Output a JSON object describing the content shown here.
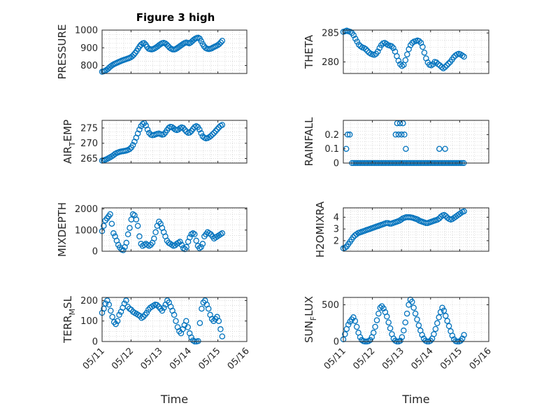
{
  "figure_title": "Figure 3 high",
  "colors": {
    "marker": "#0072BD",
    "axis": "#262626",
    "grid": "#c8c8c8"
  },
  "chart_data": [
    {
      "type": "scatter",
      "id": "pressure",
      "title": "Figure 3 high",
      "ylabel": "PRESSURE",
      "ylim": [
        755,
        1000
      ],
      "yticks": [
        800,
        900,
        1000
      ],
      "xlim": [
        0,
        5
      ],
      "xticks": [],
      "y": [
        765,
        767,
        770,
        775,
        782,
        790,
        797,
        803,
        808,
        812,
        816,
        820,
        823,
        827,
        830,
        833,
        836,
        839,
        842,
        846,
        852,
        860,
        870,
        882,
        895,
        908,
        918,
        925,
        927,
        918,
        905,
        895,
        892,
        891,
        893,
        897,
        902,
        908,
        915,
        921,
        926,
        928,
        925,
        919,
        910,
        901,
        895,
        891,
        890,
        893,
        898,
        904,
        910,
        916,
        922,
        927,
        930,
        928,
        925,
        930,
        937,
        945,
        951,
        955,
        957,
        952,
        938,
        921,
        908,
        899,
        895,
        893,
        894,
        897,
        902,
        906,
        910,
        915,
        921,
        930,
        940
      ]
    },
    {
      "type": "scatter",
      "id": "theta",
      "ylabel": "THETA",
      "ylim": [
        278,
        285.5
      ],
      "yticks": [
        280,
        285
      ],
      "xlim": [
        0,
        5
      ],
      "xticks": [],
      "y": [
        285.2,
        285.3,
        285.4,
        285.3,
        285.2,
        285.0,
        284.6,
        284.0,
        283.5,
        283.0,
        282.7,
        282.5,
        282.4,
        282.2,
        281.9,
        281.6,
        281.4,
        281.3,
        281.2,
        281.4,
        281.8,
        282.4,
        282.9,
        283.2,
        283.3,
        283.1,
        282.9,
        282.8,
        282.7,
        282.4,
        281.8,
        281.0,
        280.2,
        279.6,
        279.3,
        279.5,
        280.3,
        281.3,
        282.2,
        282.9,
        283.3,
        283.5,
        283.6,
        283.7,
        283.6,
        283.3,
        282.6,
        281.6,
        280.6,
        279.9,
        279.5,
        279.4,
        279.6,
        280.0,
        279.9,
        279.6,
        279.4,
        279.1,
        278.9,
        279.1,
        279.4,
        279.7,
        280.0,
        280.4,
        280.8,
        281.1,
        281.3,
        281.4,
        281.3,
        281.1,
        280.9
      ]
    },
    {
      "type": "scatter",
      "id": "air_temp",
      "ylabel": "AIR_TEMP",
      "ylim": [
        263.5,
        277.5
      ],
      "yticks": [
        265,
        270,
        275
      ],
      "xlim": [
        0,
        5
      ],
      "xticks": [],
      "y": [
        264.3,
        264.4,
        264.6,
        264.8,
        265.1,
        265.4,
        265.7,
        266.1,
        266.5,
        266.8,
        267.0,
        267.2,
        267.3,
        267.4,
        267.5,
        267.6,
        267.8,
        268.1,
        268.6,
        269.4,
        270.5,
        271.8,
        273.2,
        274.5,
        275.6,
        276.3,
        276.6,
        275.8,
        274.5,
        273.4,
        272.8,
        272.6,
        272.7,
        272.9,
        273.1,
        273.2,
        273.0,
        272.8,
        272.9,
        273.5,
        274.3,
        275.0,
        275.4,
        275.3,
        274.9,
        274.5,
        274.3,
        274.5,
        274.9,
        275.2,
        275.0,
        274.4,
        273.8,
        273.4,
        273.5,
        274.0,
        274.7,
        275.3,
        275.6,
        275.3,
        274.5,
        273.3,
        272.3,
        271.8,
        271.6,
        271.7,
        272.0,
        272.4,
        272.9,
        273.4,
        274.0,
        274.6,
        275.2,
        275.7,
        276.0
      ]
    },
    {
      "type": "scatter",
      "id": "rainfall",
      "ylabel": "RAINFALL",
      "ylim": [
        0,
        0.3
      ],
      "yticks": [
        0,
        0.1,
        0.2
      ],
      "xlim": [
        0,
        5
      ],
      "xticks": [],
      "y_nonzero": [
        [
          0.1,
          0.1
        ],
        [
          0.15,
          0.2
        ],
        [
          0.22,
          0.2
        ],
        [
          1.8,
          0.2
        ],
        [
          1.85,
          0.28
        ],
        [
          1.9,
          0.2
        ],
        [
          1.95,
          0.28
        ],
        [
          2.0,
          0.2
        ],
        [
          2.05,
          0.28
        ],
        [
          2.1,
          0.2
        ],
        [
          2.15,
          0.1
        ],
        [
          3.3,
          0.1
        ],
        [
          3.5,
          0.1
        ]
      ],
      "zero_range": [
        0.3,
        4.15
      ]
    },
    {
      "type": "scatter",
      "id": "mixdepth",
      "ylabel": "MIXDEPTH",
      "ylim": [
        0,
        2050
      ],
      "yticks": [
        0,
        1000,
        2000
      ],
      "xlim": [
        0,
        5
      ],
      "xticks": [],
      "y": [
        950,
        1200,
        1450,
        1550,
        1650,
        1750,
        1300,
        850,
        700,
        500,
        300,
        180,
        80,
        50,
        200,
        400,
        800,
        1100,
        1500,
        1750,
        1700,
        1500,
        1200,
        700,
        350,
        250,
        300,
        350,
        300,
        250,
        300,
        400,
        600,
        900,
        1200,
        1400,
        1300,
        1100,
        900,
        700,
        500,
        400,
        350,
        300,
        250,
        280,
        350,
        400,
        450,
        300,
        150,
        100,
        200,
        450,
        650,
        800,
        850,
        800,
        500,
        250,
        150,
        200,
        350,
        700,
        800,
        900,
        850,
        800,
        700,
        600,
        650,
        700,
        750,
        800,
        850
      ]
    },
    {
      "type": "scatter",
      "id": "h2omixra",
      "ylabel": "H2OMIXRA",
      "ylim": [
        1.1,
        4.8
      ],
      "yticks": [
        2,
        3,
        4
      ],
      "xlim": [
        0,
        5
      ],
      "xticks": [],
      "y": [
        1.35,
        1.4,
        1.5,
        1.7,
        1.9,
        2.1,
        2.3,
        2.45,
        2.55,
        2.65,
        2.7,
        2.75,
        2.8,
        2.85,
        2.9,
        2.95,
        3.0,
        3.05,
        3.1,
        3.15,
        3.2,
        3.25,
        3.3,
        3.35,
        3.4,
        3.45,
        3.5,
        3.5,
        3.45,
        3.45,
        3.5,
        3.55,
        3.6,
        3.65,
        3.7,
        3.8,
        3.9,
        3.95,
        4.0,
        4.0,
        4.0,
        3.98,
        3.95,
        3.9,
        3.85,
        3.8,
        3.7,
        3.65,
        3.6,
        3.55,
        3.5,
        3.5,
        3.55,
        3.6,
        3.65,
        3.7,
        3.75,
        3.8,
        3.9,
        4.05,
        4.15,
        4.2,
        4.1,
        3.95,
        3.85,
        3.8,
        3.85,
        3.95,
        4.05,
        4.15,
        4.25,
        4.35,
        4.45,
        4.5
      ]
    },
    {
      "type": "scatter",
      "id": "terr_msl",
      "ylabel": "TERR_MSL",
      "ylim": [
        0,
        215
      ],
      "yticks": [
        0,
        100,
        200
      ],
      "xlim": [
        0,
        5
      ],
      "xticks": [
        "05/11",
        "05/12",
        "05/13",
        "05/14",
        "05/15",
        "05/16"
      ],
      "xlabel": "Time",
      "y": [
        140,
        160,
        185,
        200,
        180,
        150,
        120,
        95,
        85,
        100,
        130,
        145,
        165,
        185,
        200,
        170,
        160,
        155,
        145,
        140,
        135,
        130,
        125,
        115,
        120,
        130,
        140,
        155,
        165,
        170,
        175,
        180,
        178,
        170,
        160,
        150,
        165,
        180,
        200,
        190,
        170,
        150,
        130,
        100,
        70,
        50,
        40,
        60,
        80,
        100,
        70,
        40,
        20,
        5,
        0,
        0,
        2,
        90,
        160,
        190,
        200,
        180,
        160,
        130,
        110,
        100,
        110,
        120,
        100,
        60,
        25
      ]
    },
    {
      "type": "scatter",
      "id": "sun_flux",
      "ylabel": "SUN_FLUX",
      "ylim": [
        0,
        600
      ],
      "yticks": [
        0,
        500
      ],
      "xlim": [
        0,
        5
      ],
      "xticks": [
        "05/11",
        "05/12",
        "05/13",
        "05/14",
        "05/15",
        "05/16"
      ],
      "xlabel": "Time",
      "y": [
        30,
        100,
        170,
        230,
        270,
        300,
        330,
        280,
        200,
        120,
        60,
        20,
        5,
        0,
        0,
        5,
        20,
        60,
        120,
        200,
        290,
        380,
        460,
        480,
        450,
        400,
        340,
        260,
        180,
        100,
        40,
        10,
        0,
        0,
        10,
        60,
        150,
        260,
        380,
        500,
        570,
        540,
        460,
        380,
        300,
        220,
        150,
        90,
        40,
        10,
        0,
        0,
        10,
        40,
        100,
        170,
        250,
        330,
        400,
        460,
        420,
        350,
        280,
        210,
        140,
        80,
        30,
        5,
        0,
        0,
        10,
        40,
        90
      ]
    }
  ]
}
